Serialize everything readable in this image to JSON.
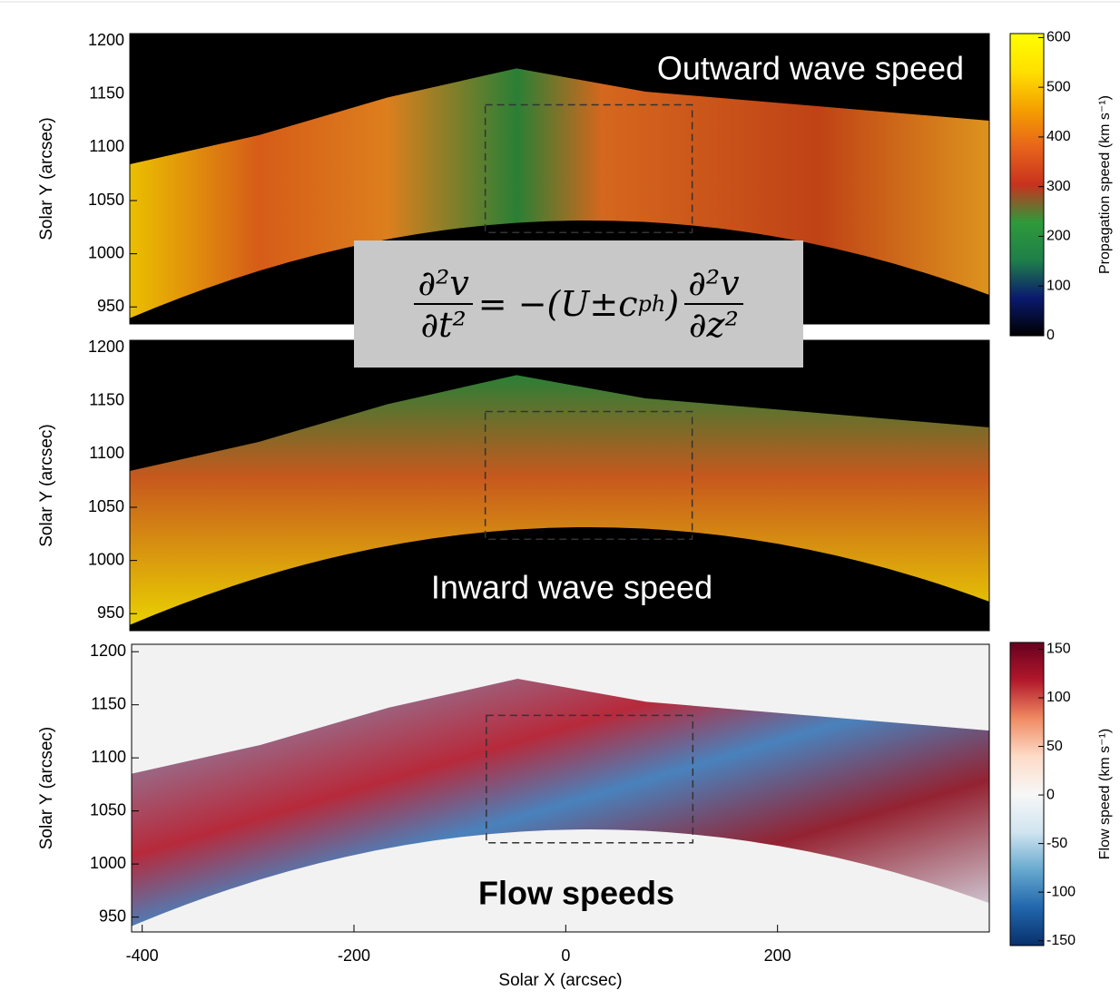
{
  "chart_data": [
    {
      "type": "heatmap",
      "annotation": "Outward wave speed",
      "ylabel": "Solar Y (arcsec)",
      "xlim": [
        -410,
        400
      ],
      "ylim": [
        934,
        1207
      ],
      "yticks": [
        950,
        1000,
        1050,
        1100,
        1150,
        1200
      ],
      "box": {
        "x": [
          -75,
          120
        ],
        "y": [
          1020,
          1140
        ]
      },
      "colorbar": {
        "label": "Propagation speed (km s⁻¹)",
        "lim": [
          0,
          608
        ],
        "ticks": [
          0,
          100,
          200,
          300,
          400,
          500,
          600
        ],
        "colors": [
          "#000000",
          "#0a1a6e",
          "#1f7f4a",
          "#2e9a3a",
          "#c8321e",
          "#e8641a",
          "#f5a000",
          "#ffe000",
          "#ffff00"
        ]
      }
    },
    {
      "type": "heatmap",
      "annotation": "Inward wave speed",
      "ylabel": "Solar Y (arcsec)",
      "xlim": [
        -410,
        400
      ],
      "ylim": [
        934,
        1207
      ],
      "yticks": [
        950,
        1000,
        1050,
        1100,
        1150,
        1200
      ],
      "box": {
        "x": [
          -75,
          120
        ],
        "y": [
          1020,
          1140
        ]
      }
    },
    {
      "type": "heatmap",
      "annotation": "Flow speeds",
      "ylabel": "Solar Y (arcsec)",
      "xlabel": "Solar X (arcsec)",
      "xlim": [
        -410,
        400
      ],
      "ylim": [
        936,
        1207
      ],
      "yticks": [
        950,
        1000,
        1050,
        1100,
        1150,
        1200
      ],
      "xticks": [
        -400,
        -200,
        0,
        200
      ],
      "box": {
        "x": [
          -75,
          120
        ],
        "y": [
          1020,
          1140
        ]
      },
      "colorbar": {
        "label": "Flow speed (km s⁻¹)",
        "lim": [
          -155,
          157
        ],
        "ticks": [
          -150,
          -100,
          -50,
          0,
          50,
          100,
          150
        ],
        "colors": [
          "#08306b",
          "#2166ac",
          "#67a9cf",
          "#d1e5f0",
          "#f7f7f7",
          "#fddbc7",
          "#ef8a62",
          "#b2182b",
          "#67001f"
        ]
      }
    }
  ],
  "equation": {
    "num1": "∂²v",
    "den1": "∂t²",
    "mid": "= −(U±c",
    "sub": "ph",
    "close": ")",
    "num2": "∂²v",
    "den2": "∂z²"
  }
}
